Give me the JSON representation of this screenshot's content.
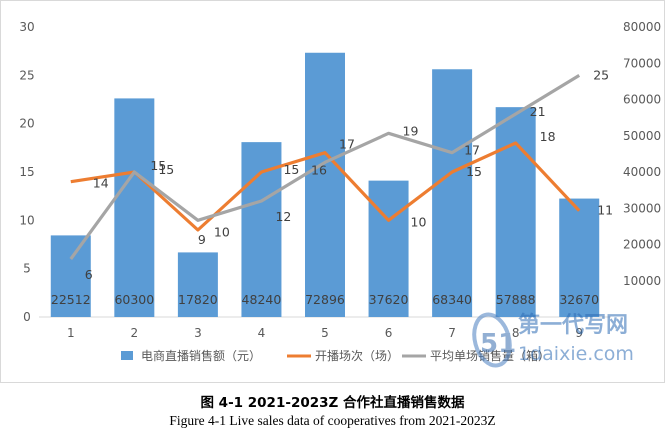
{
  "chart_data": {
    "type": "bar",
    "categories": [
      "1",
      "2",
      "3",
      "4",
      "5",
      "6",
      "7",
      "8",
      "9"
    ],
    "series": [
      {
        "name": "电商直播销售额（元）",
        "kind": "bar",
        "axis": "right",
        "color": "#5b9bd5",
        "values": [
          22512,
          60300,
          17820,
          48240,
          72896,
          37620,
          68340,
          57888,
          32670
        ]
      },
      {
        "name": "开播场次（场）",
        "kind": "line",
        "axis": "left",
        "color": "#ed7d31",
        "values": [
          14,
          15,
          9,
          15,
          17,
          10,
          15,
          18,
          11
        ]
      },
      {
        "name": "平均单场销售量（箱）",
        "kind": "line",
        "axis": "left",
        "color": "#a5a5a5",
        "values": [
          6,
          15,
          10,
          12,
          16,
          19,
          17,
          21,
          25
        ]
      }
    ],
    "ylim_left": [
      0,
      30
    ],
    "yticks_left": [
      "0",
      "5",
      "10",
      "15",
      "20",
      "25",
      "30"
    ],
    "ylim_right": [
      0,
      80000
    ],
    "yticks_right": [
      "10000",
      "20000",
      "30000",
      "40000",
      "50000",
      "60000",
      "70000",
      "80000"
    ],
    "grid": false,
    "legend_position": "bottom"
  },
  "captions": {
    "cn": "图 4-1  2021-2023Z 合作社直播销售数据",
    "en": "Figure 4-1    Live sales data of cooperatives from 2021-2023Z"
  },
  "watermark": {
    "mark": "51",
    "text_cn": "第一代写网",
    "text_url": "1daixie.com"
  }
}
